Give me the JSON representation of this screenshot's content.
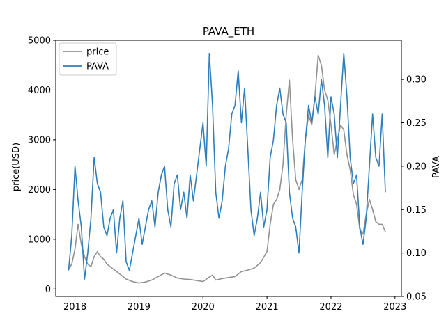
{
  "chart_data": {
    "type": "line",
    "title": "PAVA_ETH",
    "xlabel": "",
    "ylabel": "price(USD)",
    "ylabel_right": "PAVA",
    "x_ticks": [
      "2018",
      "2019",
      "2020",
      "2021",
      "2022",
      "2023"
    ],
    "y_left_ticks": [
      "0",
      "1000",
      "2000",
      "3000",
      "4000",
      "5000"
    ],
    "y_right_ticks": [
      "0.05",
      "0.10",
      "0.15",
      "0.20",
      "0.25",
      "0.30"
    ],
    "xlim": [
      2017.7,
      2023.1
    ],
    "ylim_left": [
      -150,
      5000
    ],
    "ylim_right": [
      0.05,
      0.345
    ],
    "grid": false,
    "legend": "top-left",
    "series": [
      {
        "name": "price",
        "axis": "left",
        "color": "#929292",
        "x": [
          2017.9,
          2017.95,
          2018.0,
          2018.05,
          2018.1,
          2018.15,
          2018.2,
          2018.25,
          2018.3,
          2018.35,
          2018.4,
          2018.45,
          2018.5,
          2018.6,
          2018.7,
          2018.8,
          2018.9,
          2019.0,
          2019.1,
          2019.2,
          2019.3,
          2019.4,
          2019.5,
          2019.6,
          2019.7,
          2019.8,
          2019.9,
          2020.0,
          2020.1,
          2020.15,
          2020.2,
          2020.3,
          2020.4,
          2020.5,
          2020.6,
          2020.7,
          2020.8,
          2020.9,
          2021.0,
          2021.05,
          2021.1,
          2021.15,
          2021.2,
          2021.25,
          2021.3,
          2021.35,
          2021.4,
          2021.45,
          2021.5,
          2021.55,
          2021.6,
          2021.65,
          2021.7,
          2021.75,
          2021.8,
          2021.85,
          2021.9,
          2021.95,
          2022.0,
          2022.05,
          2022.1,
          2022.15,
          2022.2,
          2022.25,
          2022.3,
          2022.35,
          2022.4,
          2022.45,
          2022.5,
          2022.55,
          2022.6,
          2022.65,
          2022.7,
          2022.75,
          2022.8,
          2022.85
        ],
        "y": [
          400,
          500,
          800,
          1300,
          900,
          650,
          500,
          450,
          650,
          750,
          650,
          600,
          500,
          400,
          300,
          200,
          150,
          120,
          140,
          180,
          250,
          320,
          280,
          220,
          200,
          190,
          170,
          150,
          240,
          280,
          180,
          210,
          230,
          250,
          350,
          380,
          420,
          530,
          750,
          1300,
          1700,
          1800,
          2000,
          2500,
          3500,
          4200,
          3000,
          2200,
          2000,
          2200,
          3000,
          3500,
          3300,
          3900,
          4700,
          4500,
          4000,
          3800,
          3300,
          2700,
          3000,
          3300,
          3200,
          2700,
          2400,
          1900,
          1700,
          1200,
          1100,
          1500,
          1800,
          1600,
          1350,
          1300,
          1300,
          1150
        ]
      },
      {
        "name": "PAVA",
        "axis": "right",
        "color": "#2f7ebc",
        "x": [
          2017.9,
          2017.95,
          2018.0,
          2018.05,
          2018.1,
          2018.15,
          2018.2,
          2018.25,
          2018.3,
          2018.35,
          2018.4,
          2018.45,
          2018.5,
          2018.55,
          2018.6,
          2018.65,
          2018.7,
          2018.75,
          2018.8,
          2018.85,
          2018.9,
          2018.95,
          2019.0,
          2019.05,
          2019.1,
          2019.15,
          2019.2,
          2019.25,
          2019.3,
          2019.35,
          2019.4,
          2019.45,
          2019.5,
          2019.55,
          2019.6,
          2019.65,
          2019.7,
          2019.75,
          2019.8,
          2019.85,
          2019.9,
          2019.95,
          2020.0,
          2020.05,
          2020.1,
          2020.15,
          2020.2,
          2020.25,
          2020.3,
          2020.35,
          2020.4,
          2020.45,
          2020.5,
          2020.55,
          2020.6,
          2020.65,
          2020.7,
          2020.75,
          2020.8,
          2020.85,
          2020.9,
          2020.95,
          2021.0,
          2021.05,
          2021.1,
          2021.15,
          2021.2,
          2021.25,
          2021.3,
          2021.35,
          2021.4,
          2021.45,
          2021.5,
          2021.55,
          2021.6,
          2021.65,
          2021.7,
          2021.75,
          2021.8,
          2021.85,
          2021.9,
          2021.95,
          2022.0,
          2022.05,
          2022.1,
          2022.15,
          2022.2,
          2022.25,
          2022.3,
          2022.35,
          2022.4,
          2022.45,
          2022.5,
          2022.55,
          2022.6,
          2022.65,
          2022.7,
          2022.75,
          2022.8,
          2022.85
        ],
        "y": [
          0.08,
          0.12,
          0.2,
          0.16,
          0.13,
          0.07,
          0.1,
          0.14,
          0.21,
          0.18,
          0.17,
          0.13,
          0.12,
          0.14,
          0.15,
          0.1,
          0.14,
          0.16,
          0.09,
          0.08,
          0.1,
          0.12,
          0.14,
          0.11,
          0.13,
          0.15,
          0.16,
          0.13,
          0.17,
          0.19,
          0.2,
          0.15,
          0.13,
          0.18,
          0.19,
          0.15,
          0.17,
          0.14,
          0.19,
          0.16,
          0.19,
          0.22,
          0.25,
          0.2,
          0.33,
          0.27,
          0.17,
          0.14,
          0.16,
          0.2,
          0.22,
          0.26,
          0.27,
          0.31,
          0.25,
          0.29,
          0.22,
          0.15,
          0.12,
          0.14,
          0.17,
          0.13,
          0.15,
          0.21,
          0.23,
          0.27,
          0.29,
          0.26,
          0.25,
          0.17,
          0.14,
          0.13,
          0.1,
          0.17,
          0.23,
          0.27,
          0.25,
          0.28,
          0.26,
          0.3,
          0.27,
          0.21,
          0.28,
          0.26,
          0.21,
          0.27,
          0.33,
          0.28,
          0.21,
          0.18,
          0.19,
          0.13,
          0.11,
          0.14,
          0.2,
          0.26,
          0.21,
          0.2,
          0.26,
          0.17
        ]
      }
    ]
  }
}
